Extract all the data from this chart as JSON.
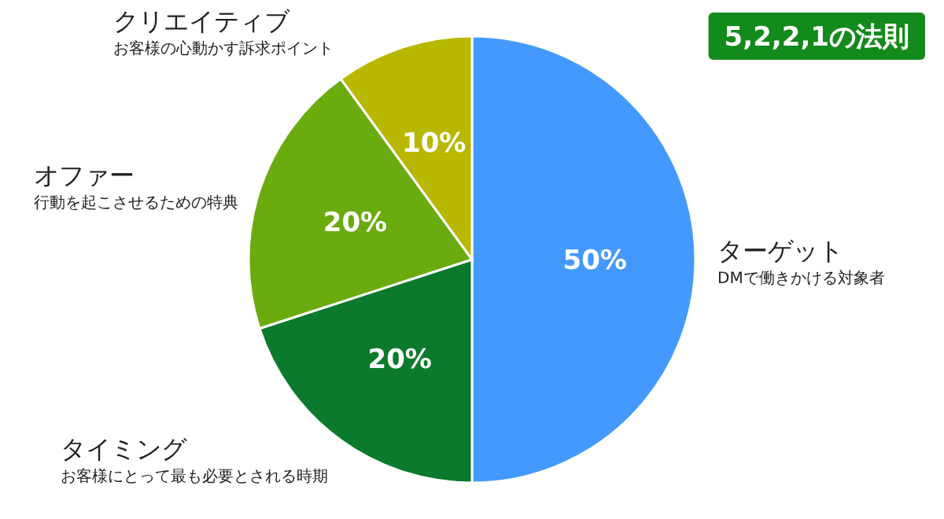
{
  "chart_data": {
    "type": "pie",
    "title": "5,2,2,1の法則",
    "categories": [
      "ターゲット",
      "タイミング",
      "オファー",
      "クリエイティブ"
    ],
    "values": [
      50,
      20,
      20,
      10
    ],
    "colors": [
      "#4499ff",
      "#0b7a2c",
      "#6aab0e",
      "#b8b800"
    ],
    "value_labels": [
      "50%",
      "20%",
      "20%",
      "10%"
    ],
    "annotations": [
      "DMで働きかける対象者",
      "お客様にとって最も必要とされる時期",
      "行動を起こさせるための特典",
      "お客様の心動かす訴求ポイント"
    ]
  }
}
